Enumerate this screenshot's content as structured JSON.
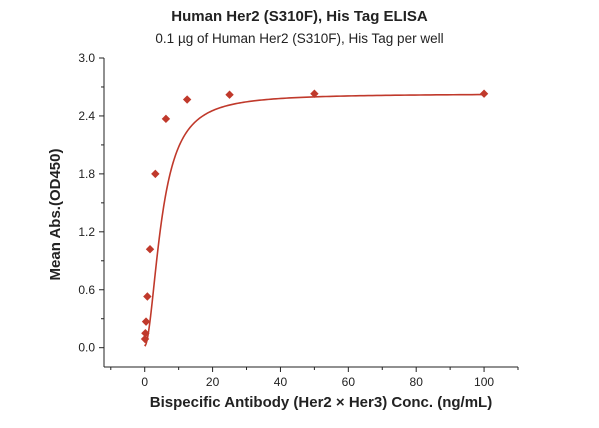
{
  "chart_data": {
    "type": "scatter",
    "title": "Human Her2 (S310F), His Tag ELISA",
    "subtitle": "0.1 µg of Human Her2 (S310F), His Tag per well",
    "xlabel": "Bispecific Antibody (Her2 × Her3) Conc. (ng/mL)",
    "ylabel": "Mean Abs.(OD450)",
    "xlim": [
      -12,
      110
    ],
    "ylim": [
      -0.2,
      3.0
    ],
    "x_ticks": [
      0,
      20,
      40,
      60,
      80,
      100
    ],
    "y_ticks": [
      0.0,
      0.6,
      1.2,
      1.8,
      2.4,
      3.0
    ],
    "x_tick_labels": [
      "0",
      "20",
      "40",
      "60",
      "80",
      "100"
    ],
    "y_tick_labels": [
      "0.0",
      "0.6",
      "1.2",
      "1.8",
      "2.4",
      "3.0"
    ],
    "grid": false,
    "legend": "none",
    "series": [
      {
        "marker": "diamond",
        "color": "#c0392b",
        "x": [
          0.098,
          0.195,
          0.39,
          0.78,
          1.56,
          3.125,
          6.25,
          12.5,
          25,
          50,
          100
        ],
        "y": [
          0.09,
          0.15,
          0.27,
          0.53,
          1.02,
          1.8,
          2.37,
          2.57,
          2.62,
          2.63,
          2.63
        ]
      }
    ],
    "fit": {
      "type": "4PL",
      "color": "#c0392b",
      "A": 0.02,
      "D": 2.63,
      "C": 5.0,
      "B": 1.9
    }
  }
}
